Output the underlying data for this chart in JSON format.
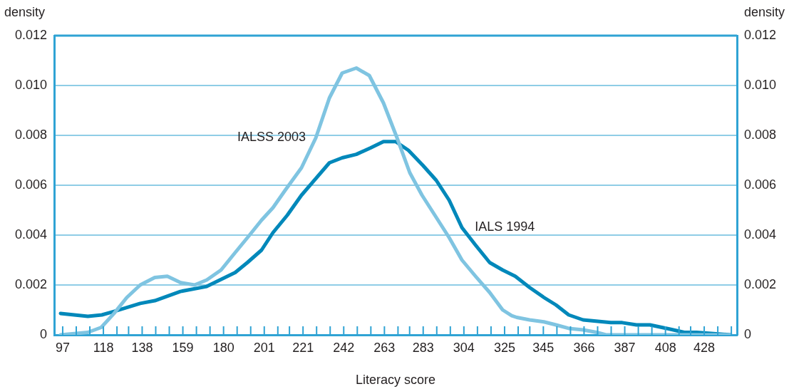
{
  "chart_data": {
    "type": "line",
    "xlabel": "Literacy score",
    "ylabel": "density",
    "y2label": "density",
    "xlim": [
      92.6,
      444.9
    ],
    "xticks": [
      97,
      {
        "value": 104,
        "label": null
      },
      {
        "value": 111,
        "label": null
      },
      118,
      {
        "value": 125,
        "label": null
      },
      {
        "value": 131,
        "label": null
      },
      138,
      {
        "value": 145,
        "label": null
      },
      {
        "value": 152,
        "label": null
      },
      159,
      {
        "value": 166,
        "label": null
      },
      {
        "value": 173,
        "label": null
      },
      180,
      {
        "value": 187,
        "label": null
      },
      {
        "value": 194,
        "label": null
      },
      201,
      {
        "value": 208,
        "label": null
      },
      {
        "value": 214,
        "label": null
      },
      221,
      {
        "value": 228,
        "label": null
      },
      {
        "value": 235,
        "label": null
      },
      242,
      {
        "value": 249,
        "label": null
      },
      {
        "value": 256,
        "label": null
      },
      263,
      {
        "value": 270,
        "label": null
      },
      {
        "value": 276,
        "label": null
      },
      283,
      {
        "value": 290,
        "label": null
      },
      {
        "value": 297,
        "label": null
      },
      304,
      {
        "value": 311,
        "label": null
      },
      {
        "value": 318,
        "label": null
      },
      325,
      {
        "value": 332,
        "label": null
      },
      {
        "value": 338,
        "label": null
      },
      345,
      {
        "value": 352,
        "label": null
      },
      {
        "value": 359,
        "label": null
      },
      366,
      {
        "value": 373,
        "label": null
      },
      {
        "value": 380,
        "label": null
      },
      387,
      {
        "value": 394,
        "label": null
      },
      {
        "value": 401,
        "label": null
      },
      408,
      {
        "value": 415,
        "label": null
      },
      {
        "value": 421,
        "label": null
      },
      428,
      {
        "value": 435,
        "label": null
      },
      {
        "value": 442,
        "label": null
      }
    ],
    "ylim": [
      0,
      0.012
    ],
    "yticks": [
      0,
      {
        "value": 0.002,
        "label": "0.002"
      },
      {
        "value": 0.004,
        "label": "0.004"
      },
      {
        "value": 0.006,
        "label": "0.006"
      },
      {
        "value": 0.008,
        "label": "0.008"
      },
      {
        "value": 0.01,
        "label": "0.010"
      },
      {
        "value": 0.012,
        "label": "0.012"
      }
    ],
    "y2lim": [
      0,
      0.012
    ],
    "y2ticks": [
      0,
      {
        "value": 0.002,
        "label": "0.002"
      },
      {
        "value": 0.004,
        "label": "0.004"
      },
      {
        "value": 0.006,
        "label": "0.006"
      },
      {
        "value": 0.008,
        "label": "0.008"
      },
      {
        "value": 0.01,
        "label": "0.010"
      },
      {
        "value": 0.012,
        "label": "0.012"
      }
    ],
    "grid": "y",
    "legend": false,
    "marker": "none",
    "line_style": "solid",
    "series": [
      {
        "name": "IALSS 2003",
        "color": "#7fc4e1",
        "x": [
          95.9,
          110,
          116.9,
          123.5,
          130.1,
          137,
          144.5,
          151,
          157.7,
          165,
          171.3,
          178.7,
          186,
          193.4,
          199.6,
          205.5,
          211.8,
          220.2,
          227.6,
          234.6,
          241.2,
          248.5,
          255.2,
          262.5,
          269.5,
          276.1,
          282.4,
          289,
          296.4,
          303,
          310,
          317.3,
          324,
          328.7,
          331.3,
          337.9,
          345.3,
          351.5,
          358.1,
          365.5,
          372.5,
          377.3,
          441.6
        ],
        "values": [
          0,
          0.0001,
          0.0003,
          0.00086,
          0.0015,
          0.002,
          0.0023,
          0.00235,
          0.0021,
          0.002,
          0.0022,
          0.0026,
          0.0033,
          0.004,
          0.0046,
          0.0051,
          0.0058,
          0.0067,
          0.0079,
          0.0095,
          0.0105,
          0.0107,
          0.0104,
          0.0093,
          0.0079,
          0.0065,
          0.0056,
          0.0048,
          0.0039,
          0.003,
          0.00235,
          0.0017,
          0.001,
          0.00077,
          0.0007,
          0.0006,
          0.00052,
          0.0004,
          0.00026,
          0.0002,
          0.0001,
          0,
          0
        ]
      },
      {
        "name": "IALS 1994",
        "color": "#0088ba",
        "x": [
          95.9,
          110,
          117.2,
          123.5,
          137,
          144.5,
          157.7,
          171.3,
          186,
          192.3,
          199.6,
          205.5,
          212.9,
          220.2,
          234.6,
          241.2,
          248.5,
          255.9,
          262.5,
          268.8,
          275.4,
          282.8,
          289.7,
          296.4,
          303,
          310,
          317.3,
          324,
          330.5,
          337.9,
          345.3,
          351.5,
          358.1,
          365.5,
          379.8,
          385.7,
          393,
          400,
          410.4,
          417.7,
          424,
          441.6
        ],
        "values": [
          0.00086,
          0.00074,
          0.0008,
          0.00094,
          0.00126,
          0.00137,
          0.00174,
          0.00194,
          0.0025,
          0.0029,
          0.0034,
          0.0041,
          0.0048,
          0.0056,
          0.0069,
          0.0071,
          0.00724,
          0.0075,
          0.00775,
          0.00775,
          0.0074,
          0.0068,
          0.0062,
          0.0054,
          0.0043,
          0.0036,
          0.0029,
          0.0026,
          0.00235,
          0.0019,
          0.0015,
          0.0012,
          0.0008,
          0.0006,
          0.00049,
          0.00049,
          0.0004,
          0.0004,
          0.00023,
          0.0001,
          0.0001,
          0
        ]
      }
    ]
  }
}
